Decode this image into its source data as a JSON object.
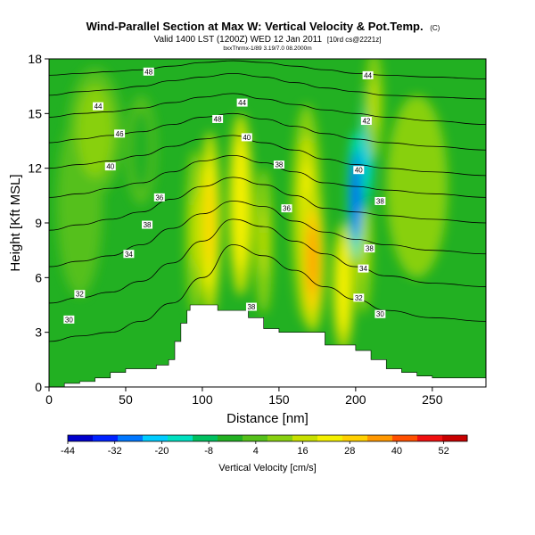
{
  "chart_data": {
    "type": "heatmap",
    "title": "Wind-Parallel Section at Max W: Vertical Velocity & Pot.Temp.",
    "title_mark": "(C)",
    "subtitle": "Valid 1400 LST (1200Z) WED 12 Jan 2011",
    "subtitle_suffix": "[10rd cs@2221z]",
    "credit": "bxxThrmx-1/89 3.19/7.0 08.2000m",
    "xlabel": "Distance [nm]",
    "ylabel": "Height [Kft MSL]",
    "xlim": [
      0,
      285
    ],
    "ylim": [
      0,
      18
    ],
    "xticks": [
      0,
      50,
      100,
      150,
      200,
      250
    ],
    "yticks": [
      0,
      3,
      6,
      9,
      12,
      15,
      18
    ],
    "colorbar": {
      "label": "Vertical Velocity [cm/s]",
      "min": -44,
      "max": 58,
      "tick_values": [
        -44,
        -32,
        -20,
        -8,
        4,
        16,
        28,
        40,
        52
      ],
      "colors": [
        "#0000cc",
        "#0022ff",
        "#0077ff",
        "#00ccff",
        "#00e0c0",
        "#00c060",
        "#22b022",
        "#55c01a",
        "#88d010",
        "#c8e000",
        "#f4f000",
        "#ffd000",
        "#ff9800",
        "#ff5000",
        "#f01010",
        "#c80000"
      ]
    },
    "terrain": {
      "x": [
        0,
        10,
        20,
        30,
        40,
        50,
        60,
        70,
        78,
        82,
        86,
        90,
        92,
        100,
        110,
        120,
        130,
        140,
        150,
        160,
        170,
        180,
        190,
        200,
        210,
        220,
        230,
        240,
        250,
        285
      ],
      "height": [
        0,
        0.2,
        0.3,
        0.5,
        0.8,
        1.0,
        1.0,
        1.2,
        1.5,
        2.5,
        3.5,
        4.2,
        4.5,
        4.5,
        4.2,
        4.2,
        3.8,
        3.2,
        3.0,
        3.0,
        3.0,
        2.3,
        2.3,
        2.0,
        1.5,
        1.0,
        0.8,
        0.6,
        0.5,
        0.5
      ]
    },
    "vertical_velocity_cores": [
      {
        "x": 95,
        "height": 8.5,
        "dx": 6,
        "dh": 4.5,
        "w": 14
      },
      {
        "x": 105,
        "height": 9.0,
        "dx": 7,
        "dh": 5.0,
        "w": 28
      },
      {
        "x": 125,
        "height": 10.0,
        "dx": 8,
        "dh": 5.0,
        "w": 26
      },
      {
        "x": 140,
        "height": 8.0,
        "dx": 6,
        "dh": 4.0,
        "w": 14
      },
      {
        "x": 168,
        "height": 9.5,
        "dx": 10,
        "dh": 6.0,
        "w": 24
      },
      {
        "x": 172,
        "height": 7.0,
        "dx": 8,
        "dh": 4.0,
        "w": 36
      },
      {
        "x": 192,
        "height": 5.5,
        "dx": 7,
        "dh": 3.5,
        "w": 26
      },
      {
        "x": 205,
        "height": 8.0,
        "dx": 6,
        "dh": 4.0,
        "w": 16
      },
      {
        "x": 200,
        "height": 10.5,
        "dx": 5,
        "dh": 3.5,
        "w": -36
      },
      {
        "x": 207,
        "height": 13.0,
        "dx": 5,
        "dh": 3.5,
        "w": -20
      },
      {
        "x": 212,
        "height": 15.5,
        "dx": 6,
        "dh": 3.0,
        "w": 16
      },
      {
        "x": 240,
        "height": 11.0,
        "dx": 20,
        "dh": 5.0,
        "w": 12
      },
      {
        "x": 20,
        "height": 10.0,
        "dx": 15,
        "dh": 5.0,
        "w": 4
      },
      {
        "x": 30,
        "height": 14.0,
        "dx": 18,
        "dh": 3.5,
        "w": 10
      },
      {
        "x": 60,
        "height": 13.0,
        "dx": 10,
        "dh": 3.0,
        "w": -2
      }
    ],
    "isentropes": [
      {
        "label": "30",
        "height": [
          2.5,
          2.8,
          3.0,
          3.6,
          4.6,
          6.0,
          7.8,
          7.2,
          6.4,
          5.5,
          4.8,
          4.2,
          3.8,
          3.6
        ]
      },
      {
        "label": "32",
        "height": [
          4.6,
          4.9,
          5.2,
          5.8,
          6.8,
          8.0,
          9.2,
          8.8,
          8.0,
          7.3,
          6.6,
          6.1,
          5.7,
          5.5
        ]
      },
      {
        "label": "34",
        "height": [
          6.6,
          6.9,
          7.2,
          7.8,
          8.7,
          9.5,
          10.2,
          9.9,
          9.1,
          8.5,
          8.1,
          7.8,
          7.5,
          7.3
        ]
      },
      {
        "label": "36",
        "height": [
          8.6,
          8.9,
          9.2,
          9.6,
          10.3,
          11.0,
          11.5,
          11.1,
          10.5,
          9.8,
          9.6,
          9.4,
          9.2,
          9.0
        ]
      },
      {
        "label": "38",
        "height": [
          10.4,
          10.6,
          10.9,
          11.2,
          11.8,
          12.4,
          12.7,
          12.3,
          11.8,
          11.2,
          11.0,
          10.8,
          10.6,
          10.4
        ]
      },
      {
        "label": "40",
        "height": [
          12.0,
          12.2,
          12.4,
          12.7,
          13.2,
          13.6,
          13.8,
          13.4,
          13.0,
          12.5,
          12.2,
          12.0,
          11.8,
          11.6
        ]
      },
      {
        "label": "42",
        "height": [
          13.4,
          13.6,
          13.8,
          14.0,
          14.4,
          14.8,
          15.0,
          14.7,
          14.3,
          13.9,
          13.6,
          13.4,
          13.2,
          13.0
        ]
      },
      {
        "label": "44",
        "height": [
          14.8,
          15.0,
          15.1,
          15.3,
          15.6,
          15.9,
          16.1,
          15.8,
          15.5,
          15.2,
          15.0,
          14.8,
          14.6,
          14.4
        ]
      },
      {
        "label": "46",
        "height": [
          16.0,
          16.2,
          16.3,
          16.5,
          16.8,
          17.0,
          17.2,
          17.0,
          16.7,
          16.4,
          16.2,
          16.0,
          15.9,
          15.8
        ]
      },
      {
        "label": "48",
        "height": [
          17.1,
          17.2,
          17.3,
          17.4,
          17.6,
          17.8,
          17.9,
          17.8,
          17.6,
          17.4,
          17.2,
          17.1,
          17.0,
          16.9
        ]
      }
    ],
    "isentrope_x": [
      0,
      20,
      40,
      60,
      80,
      100,
      120,
      140,
      160,
      180,
      200,
      220,
      250,
      285
    ],
    "isentrope_labels": [
      {
        "text": "48",
        "x": 65,
        "height": 17.3
      },
      {
        "text": "44",
        "x": 32,
        "height": 15.4
      },
      {
        "text": "46",
        "x": 46,
        "height": 13.9
      },
      {
        "text": "40",
        "x": 40,
        "height": 12.1
      },
      {
        "text": "48",
        "x": 110,
        "height": 14.7
      },
      {
        "text": "44",
        "x": 126,
        "height": 15.6
      },
      {
        "text": "40",
        "x": 129,
        "height": 13.7
      },
      {
        "text": "38",
        "x": 150,
        "height": 12.2
      },
      {
        "text": "36",
        "x": 72,
        "height": 10.4
      },
      {
        "text": "38",
        "x": 64,
        "height": 8.9
      },
      {
        "text": "34",
        "x": 52,
        "height": 7.3
      },
      {
        "text": "32",
        "x": 20,
        "height": 5.1
      },
      {
        "text": "30",
        "x": 13,
        "height": 3.7
      },
      {
        "text": "36",
        "x": 155,
        "height": 9.8
      },
      {
        "text": "38",
        "x": 132,
        "height": 4.4
      },
      {
        "text": "44",
        "x": 208,
        "height": 17.1
      },
      {
        "text": "42",
        "x": 207,
        "height": 14.6
      },
      {
        "text": "40",
        "x": 202,
        "height": 11.9
      },
      {
        "text": "38",
        "x": 216,
        "height": 10.2
      },
      {
        "text": "38",
        "x": 209,
        "height": 7.6
      },
      {
        "text": "34",
        "x": 205,
        "height": 6.5
      },
      {
        "text": "32",
        "x": 202,
        "height": 4.9
      },
      {
        "text": "30",
        "x": 216,
        "height": 4.0
      }
    ]
  }
}
